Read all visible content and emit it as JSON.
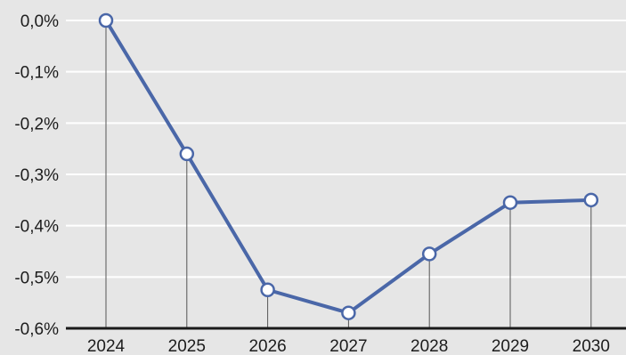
{
  "chart_data": {
    "type": "line",
    "title": "",
    "xlabel": "",
    "ylabel": "",
    "categories": [
      "2024",
      "2025",
      "2026",
      "2027",
      "2028",
      "2029",
      "2030"
    ],
    "values": [
      0.0,
      -0.26,
      -0.525,
      -0.57,
      -0.455,
      -0.355,
      -0.35
    ],
    "ylim": [
      -0.6,
      0.0
    ],
    "yticks": [
      0.0,
      -0.1,
      -0.2,
      -0.3,
      -0.4,
      -0.5,
      -0.6
    ],
    "ytick_labels": [
      "0,0%",
      "-0,1%",
      "-0,2%",
      "-0,3%",
      "-0,4%",
      "-0,5%",
      "-0,6%"
    ],
    "grid": "horizontal",
    "legend": "none",
    "colors": {
      "background": "#e6e6e6",
      "grid": "#ffffff",
      "line": "#4a67a8",
      "marker_fill": "#ffffff",
      "drop_line": "#555555",
      "axis": "#1a1a1a"
    }
  }
}
